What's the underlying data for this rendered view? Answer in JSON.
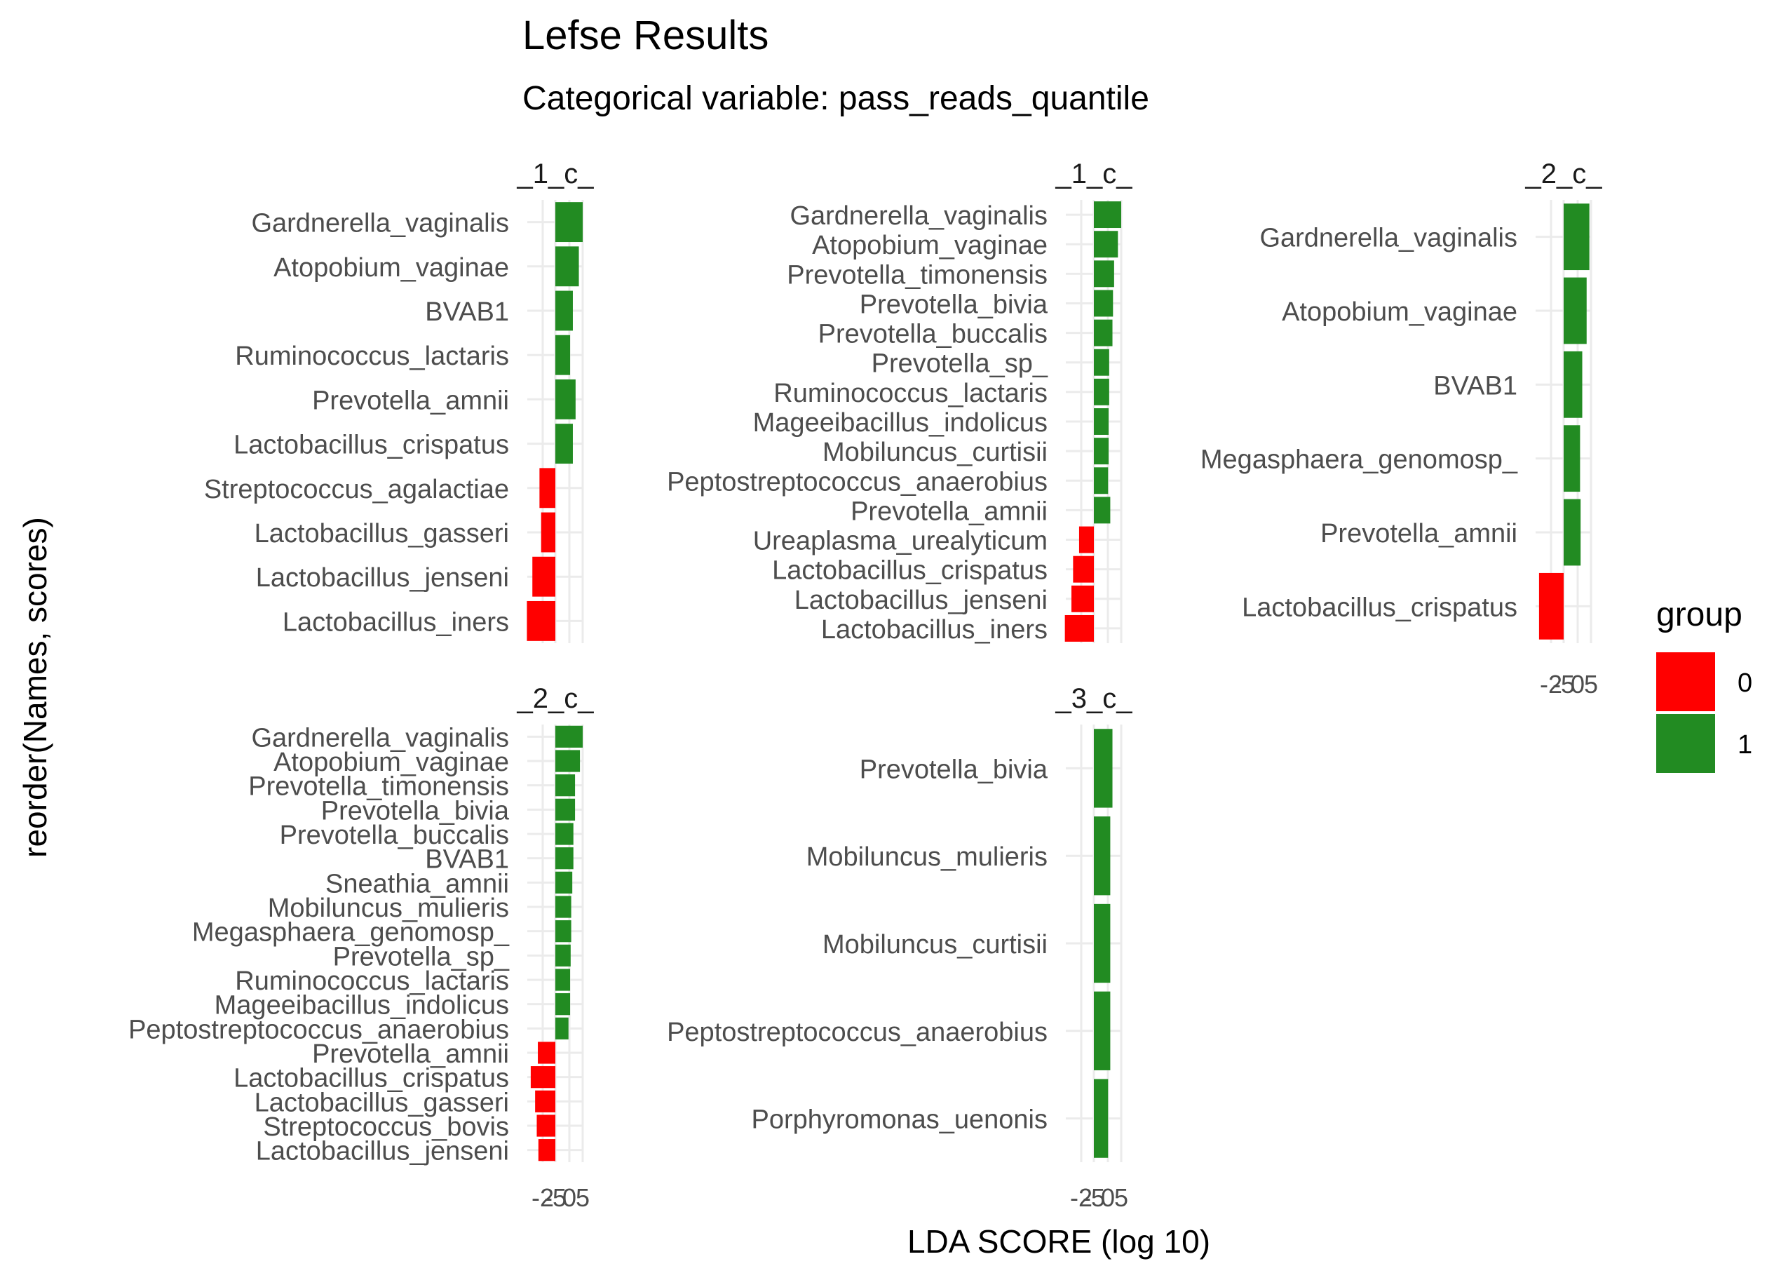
{
  "chart_data": {
    "type": "bar",
    "orientation": "horizontal",
    "title": "Lefse Results",
    "subtitle": "Categorical variable: pass_reads_quantile",
    "xlabel": "LDA SCORE (log 10)",
    "ylabel": "reorder(Names, scores)",
    "x_tick_labels": [
      "-2",
      "-5",
      "0",
      "5"
    ],
    "grid": true,
    "legend": {
      "title": "group",
      "position": "right",
      "items": [
        {
          "label": "0",
          "color": "#FF0000"
        },
        {
          "label": "1",
          "color": "#228B22"
        }
      ]
    },
    "colors": {
      "0": "#FF0000",
      "1": "#228B22"
    },
    "facets": [
      {
        "strip": "_1_c_",
        "names": [
          "Gardnerella_vaginalis",
          "Atopobium_vaginae",
          "BVAB1",
          "Ruminococcus_lactaris",
          "Prevotella_amnii",
          "Lactobacillus_crispatus",
          "Streptococcus_agalactiae",
          "Lactobacillus_gasseri",
          "Lactobacillus_jenseni",
          "Lactobacillus_iners"
        ],
        "scores": [
          5.0,
          4.3,
          3.2,
          2.7,
          3.7,
          3.2,
          -2.9,
          -2.6,
          -4.2,
          -5.2
        ],
        "groups": [
          "1",
          "1",
          "1",
          "1",
          "1",
          "1",
          "0",
          "0",
          "0",
          "0"
        ]
      },
      {
        "strip": "_1_c_",
        "names": [
          "Gardnerella_vaginalis",
          "Atopobium_vaginae",
          "Prevotella_timonensis",
          "Prevotella_bivia",
          "Prevotella_buccalis",
          "Prevotella_sp_",
          "Ruminococcus_lactaris",
          "Mageeibacillus_indolicus",
          "Mobiluncus_curtisii",
          "Peptostreptococcus_anaerobius",
          "Prevotella_amnii",
          "Ureaplasma_urealyticum",
          "Lactobacillus_crispatus",
          "Lactobacillus_jenseni",
          "Lactobacillus_iners"
        ],
        "scores": [
          5.0,
          4.4,
          3.7,
          3.5,
          3.4,
          2.8,
          2.8,
          2.7,
          2.7,
          2.6,
          3.0,
          -2.7,
          -3.8,
          -4.1,
          -5.3
        ],
        "groups": [
          "1",
          "1",
          "1",
          "1",
          "1",
          "1",
          "1",
          "1",
          "1",
          "1",
          "1",
          "0",
          "0",
          "0",
          "0"
        ]
      },
      {
        "strip": "_2_c_",
        "names": [
          "Gardnerella_vaginalis",
          "Atopobium_vaginae",
          "BVAB1",
          "Megasphaera_genomosp_",
          "Prevotella_amnii",
          "Lactobacillus_crispatus"
        ],
        "scores": [
          4.7,
          4.2,
          3.4,
          3.0,
          3.1,
          -4.5
        ],
        "groups": [
          "1",
          "1",
          "1",
          "1",
          "1",
          "0"
        ]
      },
      {
        "strip": "_2_c_",
        "names": [
          "Gardnerella_vaginalis",
          "Atopobium_vaginae",
          "Prevotella_timonensis",
          "Prevotella_bivia",
          "Prevotella_buccalis",
          "BVAB1",
          "Sneathia_amnii",
          "Mobiluncus_mulieris",
          "Megasphaera_genomosp_",
          "Prevotella_sp_",
          "Ruminococcus_lactaris",
          "Mageeibacillus_indolicus",
          "Peptostreptococcus_anaerobius",
          "Prevotella_amnii",
          "Lactobacillus_crispatus",
          "Lactobacillus_gasseri",
          "Streptococcus_bovis",
          "Lactobacillus_jenseni"
        ],
        "scores": [
          5.0,
          4.5,
          3.6,
          3.6,
          3.3,
          3.3,
          3.1,
          2.9,
          2.9,
          2.8,
          2.7,
          2.7,
          2.4,
          -3.2,
          -4.5,
          -3.7,
          -3.4,
          -3.1
        ],
        "groups": [
          "1",
          "1",
          "1",
          "1",
          "1",
          "1",
          "1",
          "1",
          "1",
          "1",
          "1",
          "1",
          "1",
          "0",
          "0",
          "0",
          "0",
          "0"
        ]
      },
      {
        "strip": "_3_c_",
        "names": [
          "Prevotella_bivia",
          "Mobiluncus_mulieris",
          "Mobiluncus_curtisii",
          "Peptostreptococcus_anaerobius",
          "Porphyromonas_uenonis"
        ],
        "scores": [
          3.4,
          3.0,
          3.0,
          3.0,
          2.6
        ],
        "groups": [
          "1",
          "1",
          "1",
          "1",
          "1"
        ]
      }
    ]
  }
}
